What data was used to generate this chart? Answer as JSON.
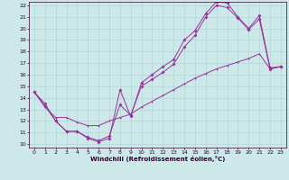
{
  "title": "",
  "xlabel": "Windchill (Refroidissement éolien,°C)",
  "bg_color": "#cce8e8",
  "line_color": "#993399",
  "grid_color": "#aadddd",
  "xmin": 0,
  "xmax": 23,
  "ymin": 10,
  "ymax": 22,
  "line1_x": [
    0,
    1,
    2,
    3,
    4,
    5,
    6,
    7,
    8,
    9,
    10,
    11,
    12,
    13,
    14,
    15,
    16,
    17,
    18,
    19,
    20,
    21,
    22,
    23
  ],
  "line1_y": [
    14.5,
    13.5,
    12.0,
    11.1,
    11.1,
    10.5,
    10.2,
    10.5,
    14.7,
    12.4,
    15.3,
    16.0,
    16.7,
    17.3,
    19.0,
    19.8,
    21.3,
    22.3,
    22.2,
    21.0,
    20.0,
    21.1,
    16.6,
    16.7
  ],
  "line2_x": [
    0,
    1,
    2,
    3,
    4,
    5,
    6,
    7,
    8,
    9,
    10,
    11,
    12,
    13,
    14,
    15,
    16,
    17,
    18,
    19,
    20,
    21,
    22,
    23
  ],
  "line2_y": [
    14.5,
    13.3,
    12.0,
    11.1,
    11.1,
    10.6,
    10.3,
    10.7,
    13.4,
    12.5,
    15.0,
    15.6,
    16.2,
    16.9,
    18.4,
    19.4,
    21.0,
    22.0,
    21.8,
    20.9,
    19.9,
    20.8,
    16.5,
    16.7
  ],
  "line3_x": [
    0,
    1,
    2,
    3,
    4,
    5,
    6,
    7,
    8,
    9,
    10,
    11,
    12,
    13,
    14,
    15,
    16,
    17,
    18,
    19,
    20,
    21,
    22,
    23
  ],
  "line3_y": [
    14.5,
    13.2,
    12.3,
    12.3,
    11.9,
    11.6,
    11.6,
    12.0,
    12.3,
    12.6,
    13.2,
    13.7,
    14.2,
    14.7,
    15.2,
    15.7,
    16.1,
    16.5,
    16.8,
    17.1,
    17.4,
    17.8,
    16.5,
    16.7
  ]
}
